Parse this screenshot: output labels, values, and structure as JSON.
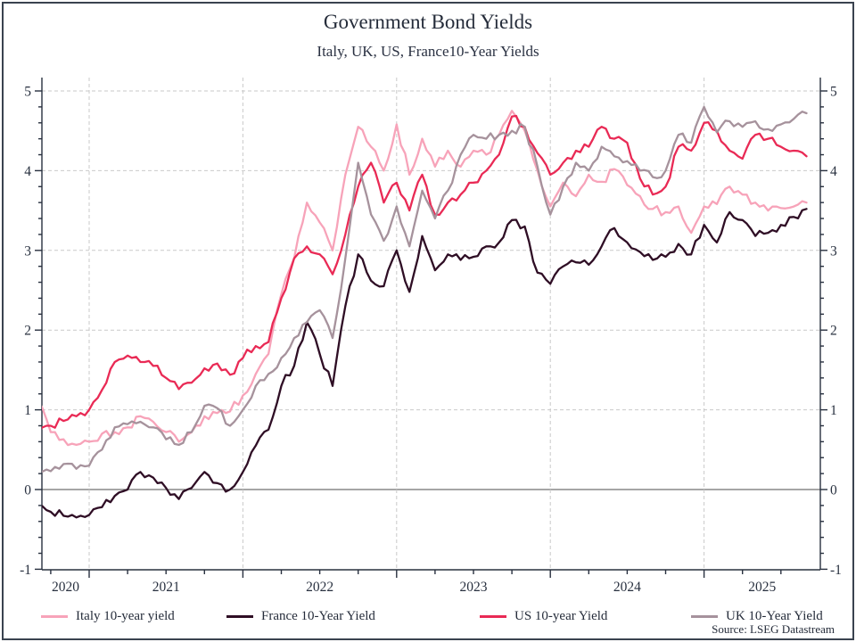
{
  "header": {
    "title": "Government Bond Yields",
    "subtitle": "Italy, UK, US, France10-Year Yields"
  },
  "footer": {
    "source": "Source: LSEG Datastream"
  },
  "frame": {
    "border_color": "#3A434F"
  },
  "chart_data": {
    "type": "line",
    "title": "Government Bond Yields",
    "subtitle": "Italy, UK, US, France10-Year Yields",
    "source": "Source: LSEG Datastream",
    "x_unit": "month",
    "x_start": "2020-09",
    "x_end": "2025-09",
    "x_tick_labels": [
      "2020",
      "2021",
      "2022",
      "2023",
      "2024",
      "2025"
    ],
    "ylim": [
      -1,
      5
    ],
    "y_ticks": [
      -1,
      0,
      1,
      2,
      3,
      4,
      5
    ],
    "y_minor_step": 0.2,
    "grid": "dashed",
    "legend_position": "bottom",
    "axis_color": "#28303F",
    "grid_color": "#C9C9C9",
    "zero_line_color": "#4D4D4D",
    "series": [
      {
        "name": "Italy 10-year yield",
        "color": "#F7A3B9",
        "values": [
          1.12,
          0.72,
          0.63,
          0.56,
          0.6,
          0.7,
          0.72,
          0.78,
          0.92,
          0.85,
          0.72,
          0.6,
          0.72,
          0.92,
          0.96,
          0.98,
          1.18,
          1.45,
          1.7,
          2.45,
          2.9,
          3.6,
          3.35,
          3.0,
          3.95,
          4.55,
          4.3,
          4.0,
          4.58,
          3.95,
          4.4,
          4.05,
          4.25,
          4.05,
          4.25,
          4.2,
          4.45,
          4.75,
          4.5,
          4.0,
          3.55,
          3.85,
          3.68,
          3.95,
          3.86,
          4.02,
          3.82,
          3.68,
          3.52,
          3.48,
          3.55,
          3.22,
          3.55,
          3.58,
          3.8,
          3.7,
          3.6,
          3.5,
          3.53,
          3.55,
          3.6
        ]
      },
      {
        "name": "France 10-Year Yield",
        "color": "#2F0E25",
        "values": [
          -0.2,
          -0.28,
          -0.33,
          -0.35,
          -0.32,
          -0.22,
          -0.08,
          0.0,
          0.22,
          0.15,
          0.02,
          -0.12,
          0.02,
          0.22,
          0.08,
          0.0,
          0.22,
          0.55,
          0.75,
          1.3,
          1.55,
          2.1,
          1.7,
          1.3,
          2.3,
          2.95,
          2.62,
          2.55,
          3.0,
          2.48,
          3.18,
          2.75,
          2.95,
          2.88,
          2.92,
          3.05,
          3.1,
          3.38,
          3.3,
          2.72,
          2.58,
          2.8,
          2.85,
          2.82,
          3.05,
          3.28,
          3.1,
          2.98,
          2.88,
          2.92,
          3.08,
          2.95,
          3.32,
          3.1,
          3.48,
          3.38,
          3.18,
          3.22,
          3.32,
          3.42,
          3.52
        ]
      },
      {
        "name": "US 10-year Yield",
        "color": "#E92A55",
        "values": [
          0.7,
          0.8,
          0.86,
          0.92,
          1.0,
          1.25,
          1.6,
          1.68,
          1.6,
          1.55,
          1.4,
          1.26,
          1.34,
          1.52,
          1.58,
          1.44,
          1.65,
          1.8,
          1.85,
          2.4,
          2.9,
          3.05,
          2.95,
          2.7,
          3.2,
          3.8,
          4.1,
          3.6,
          3.85,
          3.5,
          3.95,
          3.45,
          3.6,
          3.7,
          3.85,
          4.0,
          4.2,
          4.68,
          4.55,
          4.22,
          3.95,
          4.1,
          4.25,
          4.3,
          4.55,
          4.4,
          4.35,
          3.9,
          3.7,
          3.8,
          4.3,
          4.25,
          4.6,
          4.5,
          4.25,
          4.15,
          4.45,
          4.4,
          4.3,
          4.25,
          4.18
        ]
      },
      {
        "name": "UK 10-Year Yield",
        "color": "#A6929C",
        "values": [
          0.26,
          0.23,
          0.32,
          0.26,
          0.3,
          0.5,
          0.78,
          0.82,
          0.85,
          0.78,
          0.63,
          0.56,
          0.72,
          1.05,
          1.02,
          0.8,
          1.0,
          1.3,
          1.45,
          1.65,
          1.9,
          2.1,
          2.25,
          1.9,
          2.9,
          4.1,
          3.45,
          3.12,
          3.55,
          3.05,
          3.75,
          3.4,
          3.75,
          4.2,
          4.45,
          4.4,
          4.45,
          4.5,
          4.55,
          4.05,
          3.45,
          3.8,
          4.1,
          4.0,
          4.3,
          4.18,
          4.12,
          4.0,
          3.92,
          4.0,
          4.45,
          4.35,
          4.8,
          4.48,
          4.62,
          4.55,
          4.62,
          4.52,
          4.58,
          4.65,
          4.72
        ]
      }
    ]
  }
}
